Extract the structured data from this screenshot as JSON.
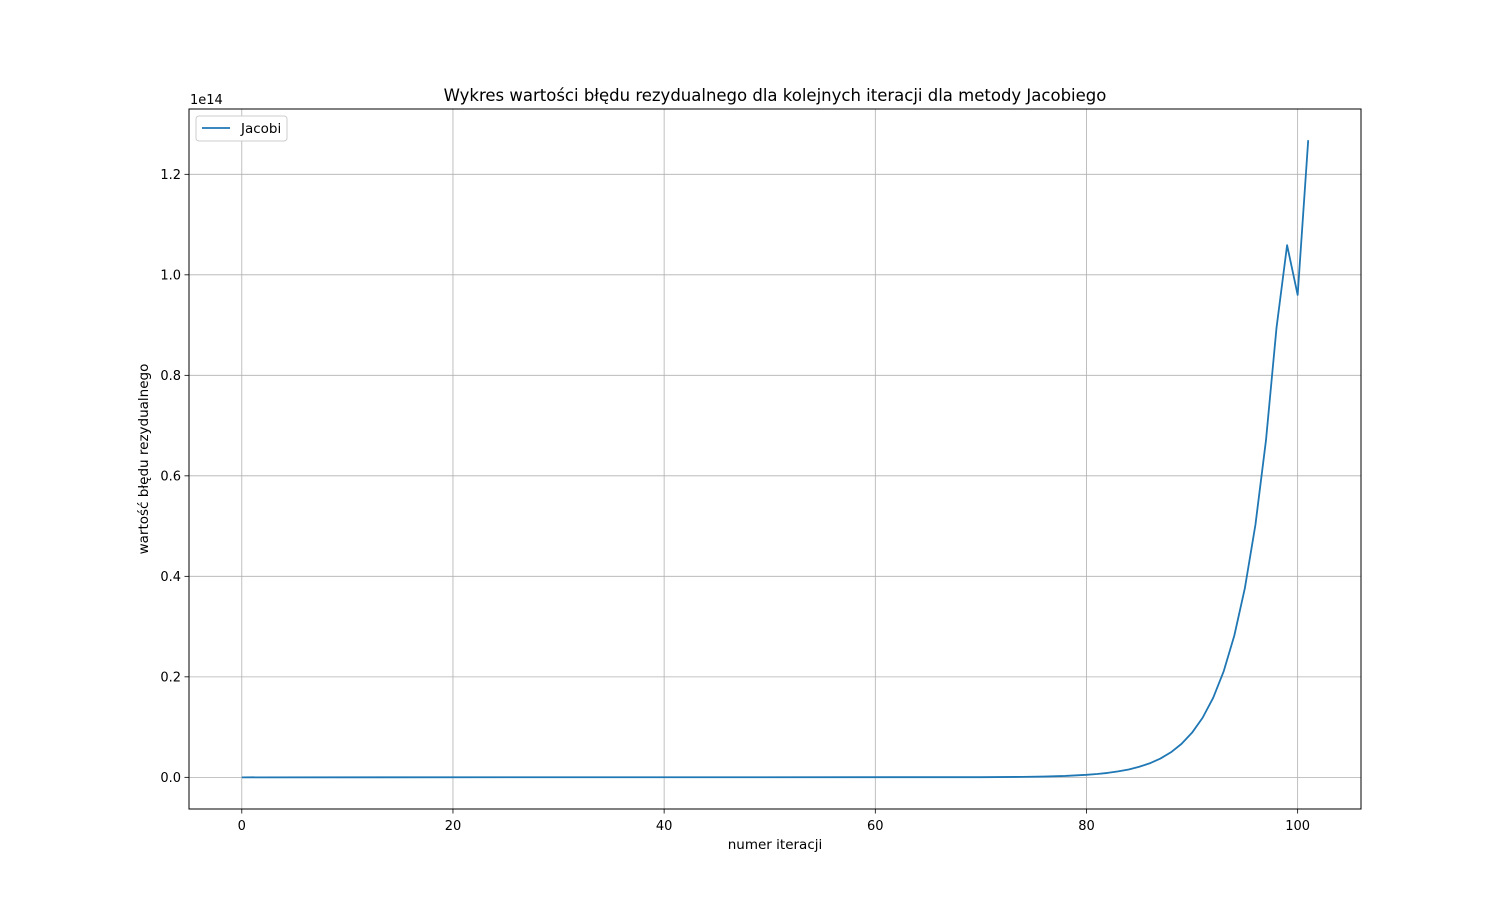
{
  "chart_data": {
    "type": "line",
    "title": "Wykres wartości błędu rezydualnego dla kolejnych iteracji dla metody Jacobiego",
    "xlabel": "numer iteracji",
    "ylabel": "wartość błędu rezydualnego",
    "y_offset_label": "1e14",
    "y_scale_factor": 100000000000000.0,
    "xlim": [
      -5,
      106
    ],
    "ylim": [
      -0.063,
      1.33
    ],
    "x_ticks": [
      0,
      20,
      40,
      60,
      80,
      100
    ],
    "x_tick_labels": [
      "0",
      "20",
      "40",
      "60",
      "80",
      "100"
    ],
    "y_ticks": [
      0.0,
      0.2,
      0.4,
      0.6,
      0.8,
      1.0,
      1.2
    ],
    "y_tick_labels": [
      "0.0",
      "0.2",
      "0.4",
      "0.6",
      "0.8",
      "1.0",
      "1.2"
    ],
    "grid": true,
    "legend_position": "upper left",
    "series": [
      {
        "name": "Jacobi",
        "color": "#1f77b4",
        "x": [
          0,
          70,
          74,
          76,
          78,
          80,
          81,
          82,
          83,
          84,
          85,
          86,
          87,
          88,
          89,
          90,
          91,
          92,
          93,
          94,
          95,
          96,
          97,
          98,
          99,
          100,
          101
        ],
        "y": [
          0.0,
          0.0003,
          0.0009,
          0.0016,
          0.0028,
          0.005,
          0.0066,
          0.0088,
          0.0118,
          0.0157,
          0.021,
          0.028,
          0.0374,
          0.0499,
          0.0666,
          0.0889,
          0.1186,
          0.1583,
          0.2113,
          0.282,
          0.3764,
          0.5024,
          0.6705,
          0.8949,
          1.059,
          0.96,
          1.268
        ]
      }
    ]
  }
}
